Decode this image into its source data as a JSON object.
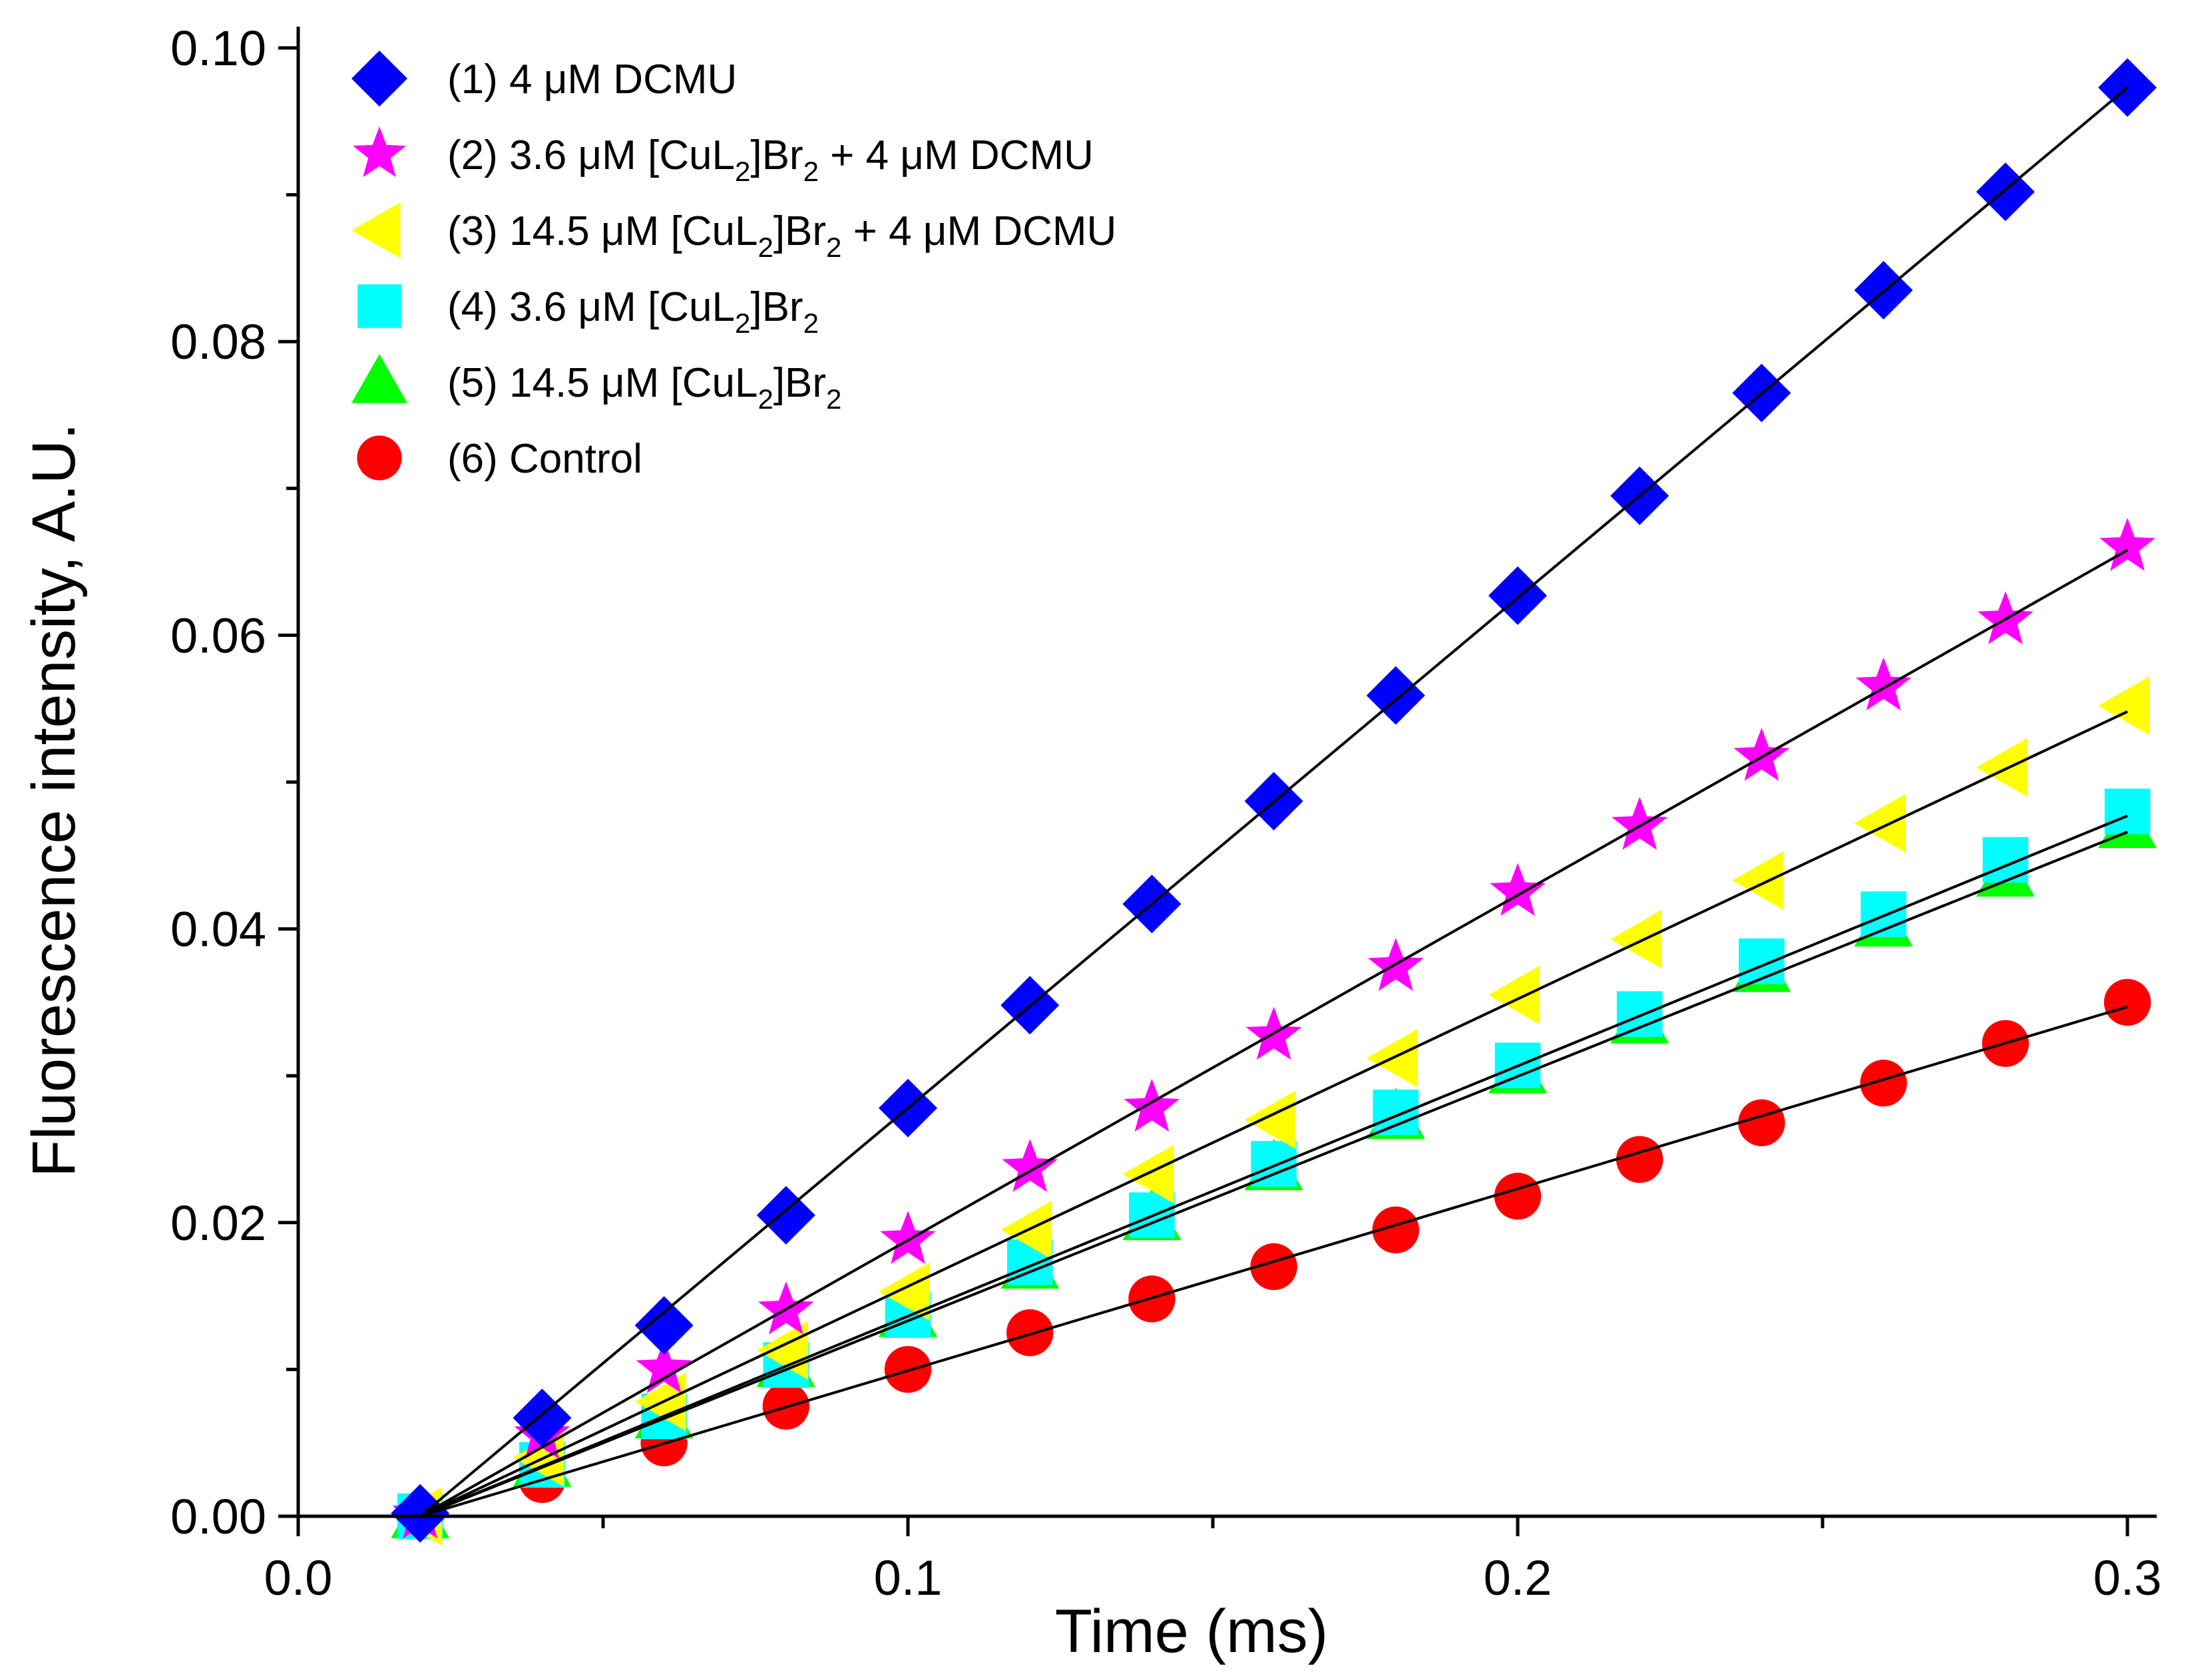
{
  "chart_data": {
    "type": "scatter",
    "title": "",
    "xlabel": "Time (ms)",
    "ylabel": "Fluorescence intensity, A.U.",
    "xlim": [
      0.0,
      0.3
    ],
    "ylim": [
      0.0,
      0.1
    ],
    "xticks": [
      "0.0",
      "0.1",
      "0.2",
      "0.3"
    ],
    "yticks": [
      "0.00",
      "0.02",
      "0.04",
      "0.06",
      "0.08",
      "0.10"
    ],
    "grid": false,
    "legend_position": "top-left",
    "x": [
      0.02,
      0.04,
      0.06,
      0.08,
      0.1,
      0.12,
      0.14,
      0.16,
      0.18,
      0.2,
      0.22,
      0.24,
      0.26,
      0.28,
      0.3
    ],
    "series": [
      {
        "name": "(1) 4 μM DCMU",
        "legend_parts": [
          {
            "t": "(1) 4 μM DCMU"
          }
        ],
        "marker": "diamond",
        "color": "#0000FF",
        "values": [
          0.0002,
          0.0067,
          0.013,
          0.0205,
          0.0278,
          0.0348,
          0.0417,
          0.0487,
          0.0559,
          0.0627,
          0.0695,
          0.0765,
          0.0835,
          0.0902,
          0.0973
        ],
        "fit": [
          0.0,
          0.0973
        ]
      },
      {
        "name": "(2) 3.6 μM [CuL2]Br2 + 4 μM DCMU",
        "legend_parts": [
          {
            "t": "(2) 3.6 μM [CuL"
          },
          {
            "t": "2",
            "sub": true
          },
          {
            "t": "]Br"
          },
          {
            "t": "2",
            "sub": true
          },
          {
            "t": " + 4 μM DCMU"
          }
        ],
        "marker": "star",
        "color": "#FF00FF",
        "values": [
          0.0001,
          0.0055,
          0.01,
          0.014,
          0.0188,
          0.0237,
          0.0278,
          0.0327,
          0.0374,
          0.0425,
          0.047,
          0.0517,
          0.0565,
          0.061,
          0.066
        ],
        "fit": [
          0.0,
          0.0658
        ]
      },
      {
        "name": "(3) 14.5 μM [CuL2]Br2 + 4 μM DCMU",
        "legend_parts": [
          {
            "t": "(3) 14.5 μM [CuL"
          },
          {
            "t": "2",
            "sub": true
          },
          {
            "t": "]Br"
          },
          {
            "t": "2",
            "sub": true
          },
          {
            "t": " + 4 μM DCMU"
          }
        ],
        "marker": "triangle-left",
        "color": "#FFFF00",
        "values": [
          0.0,
          0.004,
          0.0078,
          0.0113,
          0.0153,
          0.0195,
          0.0233,
          0.027,
          0.0312,
          0.0355,
          0.0393,
          0.0433,
          0.0472,
          0.051,
          0.0552
        ],
        "fit": [
          0.0,
          0.0548
        ]
      },
      {
        "name": "(4) 3.6 μM [CuL2]Br2",
        "legend_parts": [
          {
            "t": "(4) 3.6 μM [CuL"
          },
          {
            "t": "2",
            "sub": true
          },
          {
            "t": "]Br"
          },
          {
            "t": "2",
            "sub": true
          }
        ],
        "marker": "square",
        "color": "#00FFFF",
        "values": [
          0.0,
          0.0035,
          0.0068,
          0.0103,
          0.0137,
          0.0173,
          0.0205,
          0.024,
          0.0275,
          0.0307,
          0.0342,
          0.0378,
          0.041,
          0.0447,
          0.048
        ],
        "fit": [
          0.0,
          0.0477
        ]
      },
      {
        "name": "(5) 14.5 μM [CuL2]Br2",
        "legend_parts": [
          {
            "t": "(5) 14.5 μM [CuL"
          },
          {
            "t": "2",
            "sub": true
          },
          {
            "t": "]Br"
          },
          {
            "t": "2",
            "sub": true
          }
        ],
        "marker": "triangle-up",
        "color": "#00FF00",
        "values": [
          0.0,
          0.0035,
          0.0068,
          0.0103,
          0.0137,
          0.017,
          0.0203,
          0.0237,
          0.0272,
          0.0303,
          0.0337,
          0.0372,
          0.0403,
          0.0437,
          0.047
        ],
        "fit": [
          0.0,
          0.0466
        ]
      },
      {
        "name": "(6) Control",
        "legend_parts": [
          {
            "t": "(6) Control"
          }
        ],
        "marker": "circle",
        "color": "#FF0000",
        "values": [
          0.0,
          0.0025,
          0.005,
          0.0075,
          0.01,
          0.0125,
          0.0148,
          0.017,
          0.0195,
          0.0218,
          0.0243,
          0.0268,
          0.0295,
          0.0322,
          0.035
        ],
        "fit": [
          0.0,
          0.0347
        ]
      }
    ]
  }
}
